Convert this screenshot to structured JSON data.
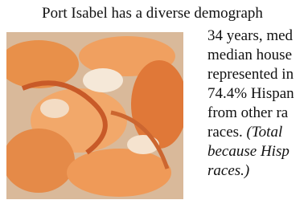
{
  "paragraph": {
    "first_line": "Port Isabel has a diverse demograph",
    "text_lines": [
      "34 years, med",
      "median house",
      "represented in",
      "74.4% Hispan",
      "from other ra",
      "races."
    ],
    "note_lines": [
      "(Total",
      "because Hisp",
      "races.)"
    ]
  }
}
